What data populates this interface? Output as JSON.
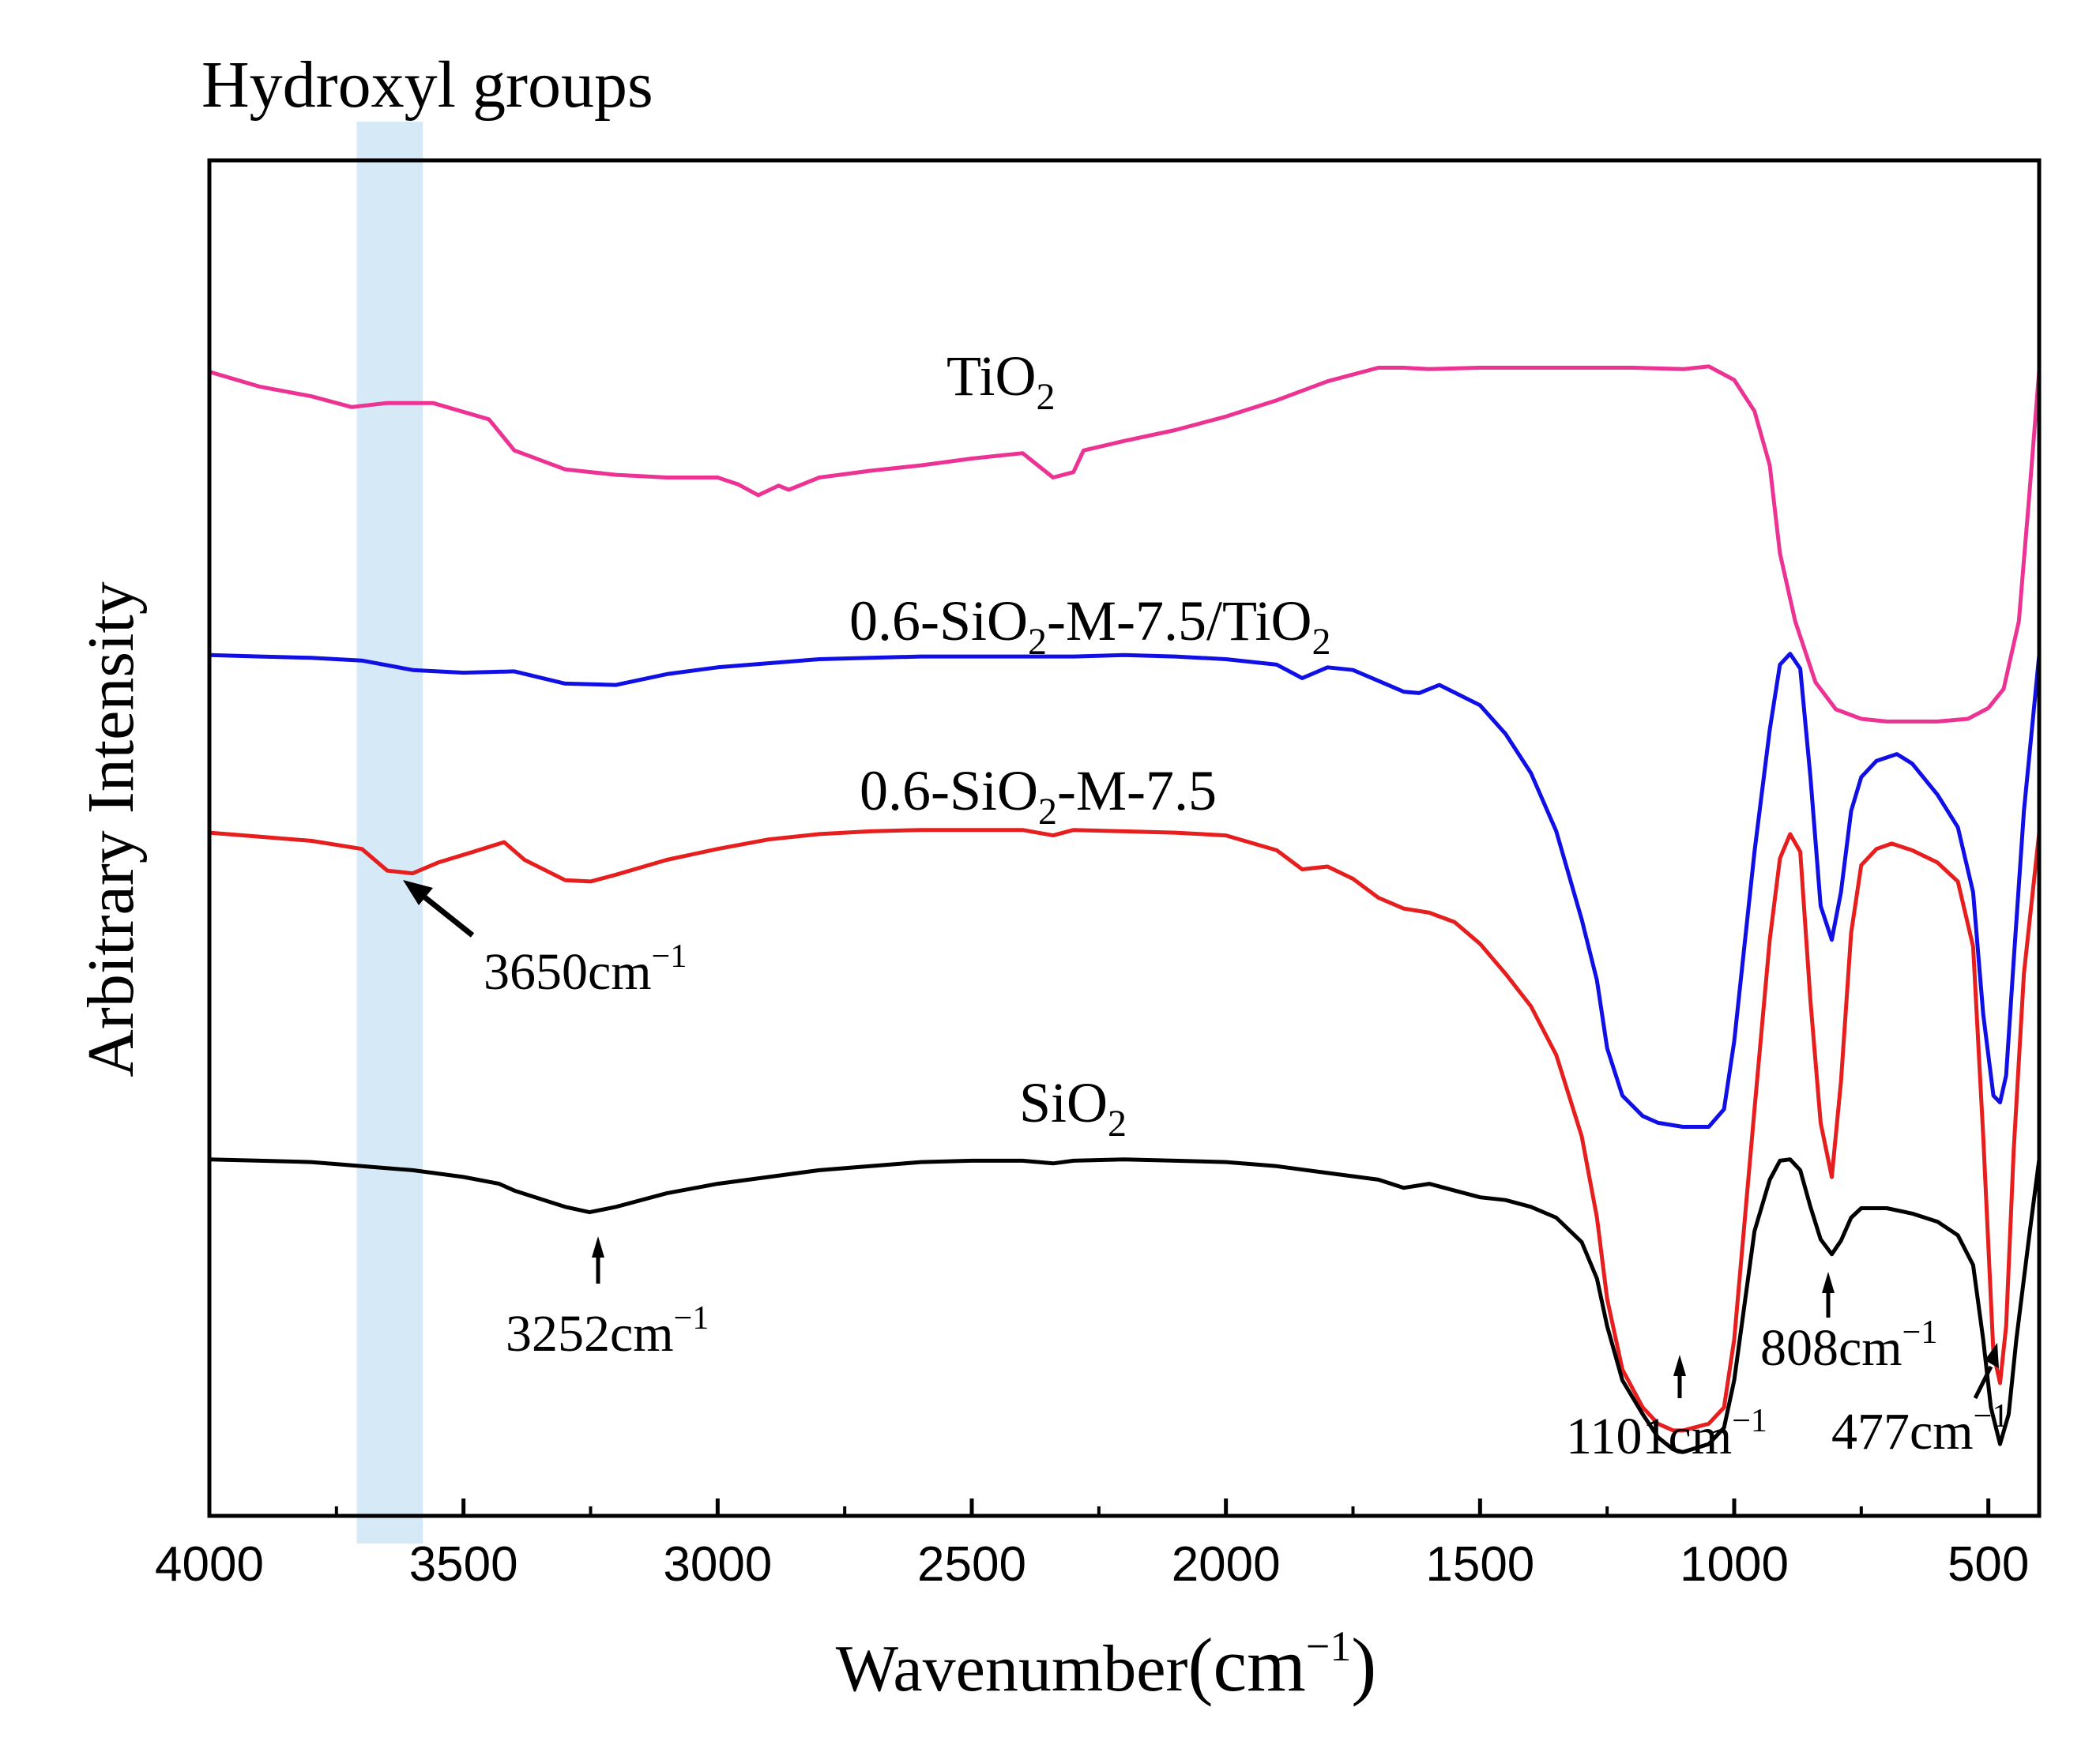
{
  "chart_data": {
    "type": "line",
    "title": "",
    "xlabel": "Wavenumber",
    "xlabel_unit": "(cm",
    "xlabel_unit_exp": "−1",
    "xlabel_unit_close": ")",
    "ylabel": "Arbitrary Intensity",
    "xlim": [
      4000,
      400
    ],
    "x_reversed": true,
    "x_ticks": [
      4000,
      3500,
      3000,
      2500,
      2000,
      1500,
      1000,
      500
    ],
    "x_tick_labels": [
      "4000",
      "3500",
      "3000",
      "2500",
      "2000",
      "1500",
      "1000",
      "500"
    ],
    "ylim": [
      0,
      100
    ],
    "y_ticks_shown": false,
    "grid": false,
    "highlight_band": {
      "label": "Hydroxyl groups",
      "x_from": 3710,
      "x_to": 3580,
      "color": "#d6e9f7"
    },
    "series": [
      {
        "name": "TiO2",
        "label_main": "TiO",
        "label_sub": "2",
        "label_tail": "",
        "color": "#ec3394",
        "points": [
          [
            4000,
            84.4
          ],
          [
            3900,
            83.3
          ],
          [
            3800,
            82.6
          ],
          [
            3720,
            81.8
          ],
          [
            3650,
            82.1
          ],
          [
            3560,
            82.1
          ],
          [
            3450,
            80.9
          ],
          [
            3400,
            78.6
          ],
          [
            3300,
            77.2
          ],
          [
            3200,
            76.8
          ],
          [
            3100,
            76.6
          ],
          [
            3000,
            76.6
          ],
          [
            2960,
            76.1
          ],
          [
            2920,
            75.3
          ],
          [
            2880,
            76.0
          ],
          [
            2860,
            75.7
          ],
          [
            2800,
            76.6
          ],
          [
            2700,
            77.1
          ],
          [
            2600,
            77.5
          ],
          [
            2500,
            78.0
          ],
          [
            2400,
            78.4
          ],
          [
            2380,
            77.8
          ],
          [
            2340,
            76.6
          ],
          [
            2300,
            77.0
          ],
          [
            2280,
            78.6
          ],
          [
            2200,
            79.3
          ],
          [
            2100,
            80.1
          ],
          [
            2000,
            81.1
          ],
          [
            1900,
            82.3
          ],
          [
            1800,
            83.7
          ],
          [
            1700,
            84.7
          ],
          [
            1650,
            84.7
          ],
          [
            1600,
            84.6
          ],
          [
            1500,
            84.7
          ],
          [
            1400,
            84.7
          ],
          [
            1200,
            84.7
          ],
          [
            1100,
            84.6
          ],
          [
            1050,
            84.8
          ],
          [
            1000,
            83.8
          ],
          [
            960,
            81.5
          ],
          [
            930,
            77.5
          ],
          [
            910,
            71.0
          ],
          [
            880,
            66.0
          ],
          [
            840,
            61.5
          ],
          [
            800,
            59.5
          ],
          [
            750,
            58.8
          ],
          [
            700,
            58.6
          ],
          [
            600,
            58.6
          ],
          [
            540,
            58.8
          ],
          [
            500,
            59.6
          ],
          [
            470,
            61.0
          ],
          [
            440,
            66.0
          ],
          [
            420,
            75.0
          ],
          [
            400,
            84.5
          ]
        ]
      },
      {
        "name": "0.6-SiO2-M-7.5/TiO2",
        "label_main": "0.6-SiO",
        "label_sub": "2",
        "label_tail": "-M-7.5/TiO",
        "label_sub2": "2",
        "color": "#0f0fe6",
        "points": [
          [
            4000,
            63.5
          ],
          [
            3900,
            63.4
          ],
          [
            3800,
            63.3
          ],
          [
            3700,
            63.1
          ],
          [
            3600,
            62.4
          ],
          [
            3500,
            62.2
          ],
          [
            3400,
            62.3
          ],
          [
            3300,
            61.4
          ],
          [
            3200,
            61.3
          ],
          [
            3100,
            62.1
          ],
          [
            3000,
            62.6
          ],
          [
            2900,
            62.9
          ],
          [
            2800,
            63.2
          ],
          [
            2700,
            63.3
          ],
          [
            2600,
            63.4
          ],
          [
            2500,
            63.4
          ],
          [
            2400,
            63.4
          ],
          [
            2300,
            63.4
          ],
          [
            2200,
            63.5
          ],
          [
            2100,
            63.4
          ],
          [
            2000,
            63.2
          ],
          [
            1900,
            62.8
          ],
          [
            1850,
            61.8
          ],
          [
            1800,
            62.6
          ],
          [
            1750,
            62.4
          ],
          [
            1700,
            61.6
          ],
          [
            1650,
            60.8
          ],
          [
            1620,
            60.7
          ],
          [
            1580,
            61.3
          ],
          [
            1500,
            59.8
          ],
          [
            1450,
            57.7
          ],
          [
            1400,
            54.8
          ],
          [
            1350,
            50.5
          ],
          [
            1300,
            44.0
          ],
          [
            1270,
            39.5
          ],
          [
            1250,
            34.5
          ],
          [
            1220,
            31.0
          ],
          [
            1180,
            29.5
          ],
          [
            1150,
            29.0
          ],
          [
            1101,
            28.7
          ],
          [
            1050,
            28.7
          ],
          [
            1020,
            30.0
          ],
          [
            1000,
            35.0
          ],
          [
            960,
            49.0
          ],
          [
            930,
            58.0
          ],
          [
            910,
            62.8
          ],
          [
            890,
            63.6
          ],
          [
            870,
            62.5
          ],
          [
            850,
            54.5
          ],
          [
            830,
            45.0
          ],
          [
            808,
            42.5
          ],
          [
            790,
            46.0
          ],
          [
            770,
            52.0
          ],
          [
            750,
            54.5
          ],
          [
            720,
            55.7
          ],
          [
            680,
            56.2
          ],
          [
            650,
            55.5
          ],
          [
            600,
            53.2
          ],
          [
            560,
            50.8
          ],
          [
            530,
            46.0
          ],
          [
            510,
            37.0
          ],
          [
            490,
            31.0
          ],
          [
            477,
            30.5
          ],
          [
            465,
            32.5
          ],
          [
            450,
            41.0
          ],
          [
            430,
            52.0
          ],
          [
            400,
            63.5
          ]
        ]
      },
      {
        "name": "0.6-SiO2-M-7.5",
        "label_main": "0.6-SiO",
        "label_sub": "2",
        "label_tail": "-M-7.5",
        "color": "#e61e1e",
        "points": [
          [
            4000,
            50.4
          ],
          [
            3900,
            50.1
          ],
          [
            3800,
            49.8
          ],
          [
            3700,
            49.2
          ],
          [
            3650,
            47.6
          ],
          [
            3600,
            47.4
          ],
          [
            3550,
            48.2
          ],
          [
            3480,
            49.0
          ],
          [
            3420,
            49.7
          ],
          [
            3380,
            48.4
          ],
          [
            3300,
            46.9
          ],
          [
            3250,
            46.8
          ],
          [
            3200,
            47.3
          ],
          [
            3100,
            48.4
          ],
          [
            3000,
            49.2
          ],
          [
            2900,
            49.9
          ],
          [
            2800,
            50.3
          ],
          [
            2700,
            50.5
          ],
          [
            2600,
            50.6
          ],
          [
            2500,
            50.6
          ],
          [
            2400,
            50.6
          ],
          [
            2340,
            50.2
          ],
          [
            2300,
            50.6
          ],
          [
            2200,
            50.5
          ],
          [
            2100,
            50.4
          ],
          [
            2000,
            50.2
          ],
          [
            1900,
            49.1
          ],
          [
            1850,
            47.7
          ],
          [
            1800,
            47.9
          ],
          [
            1750,
            47.0
          ],
          [
            1700,
            45.6
          ],
          [
            1650,
            44.8
          ],
          [
            1600,
            44.5
          ],
          [
            1550,
            43.8
          ],
          [
            1500,
            42.2
          ],
          [
            1450,
            40.0
          ],
          [
            1400,
            37.6
          ],
          [
            1350,
            34.0
          ],
          [
            1300,
            28.0
          ],
          [
            1270,
            22.0
          ],
          [
            1250,
            16.0
          ],
          [
            1220,
            10.8
          ],
          [
            1180,
            8.0
          ],
          [
            1150,
            6.8
          ],
          [
            1120,
            6.3
          ],
          [
            1101,
            6.3
          ],
          [
            1050,
            6.8
          ],
          [
            1020,
            8.0
          ],
          [
            1000,
            13.0
          ],
          [
            960,
            30.0
          ],
          [
            930,
            42.5
          ],
          [
            910,
            48.5
          ],
          [
            890,
            50.3
          ],
          [
            870,
            49.0
          ],
          [
            850,
            38.0
          ],
          [
            830,
            29.0
          ],
          [
            808,
            25.0
          ],
          [
            790,
            32.0
          ],
          [
            770,
            43.0
          ],
          [
            750,
            48.0
          ],
          [
            720,
            49.2
          ],
          [
            690,
            49.6
          ],
          [
            650,
            49.1
          ],
          [
            600,
            48.2
          ],
          [
            560,
            46.8
          ],
          [
            530,
            42.0
          ],
          [
            510,
            28.0
          ],
          [
            490,
            12.0
          ],
          [
            477,
            9.8
          ],
          [
            465,
            14.0
          ],
          [
            450,
            27.0
          ],
          [
            430,
            40.0
          ],
          [
            400,
            50.4
          ]
        ]
      },
      {
        "name": "SiO2",
        "label_main": "SiO",
        "label_sub": "2",
        "label_tail": "",
        "color": "#000000",
        "points": [
          [
            4000,
            26.3
          ],
          [
            3900,
            26.2
          ],
          [
            3800,
            26.1
          ],
          [
            3700,
            25.8
          ],
          [
            3600,
            25.5
          ],
          [
            3500,
            25.0
          ],
          [
            3430,
            24.5
          ],
          [
            3400,
            24.0
          ],
          [
            3300,
            22.8
          ],
          [
            3252,
            22.4
          ],
          [
            3200,
            22.8
          ],
          [
            3100,
            23.8
          ],
          [
            3000,
            24.5
          ],
          [
            2900,
            25.0
          ],
          [
            2800,
            25.5
          ],
          [
            2700,
            25.8
          ],
          [
            2600,
            26.1
          ],
          [
            2500,
            26.2
          ],
          [
            2400,
            26.2
          ],
          [
            2340,
            26.0
          ],
          [
            2300,
            26.2
          ],
          [
            2200,
            26.3
          ],
          [
            2100,
            26.2
          ],
          [
            2000,
            26.1
          ],
          [
            1900,
            25.8
          ],
          [
            1800,
            25.3
          ],
          [
            1700,
            24.8
          ],
          [
            1650,
            24.2
          ],
          [
            1600,
            24.5
          ],
          [
            1550,
            24.0
          ],
          [
            1500,
            23.5
          ],
          [
            1450,
            23.3
          ],
          [
            1400,
            22.8
          ],
          [
            1350,
            22.0
          ],
          [
            1300,
            20.2
          ],
          [
            1270,
            17.5
          ],
          [
            1250,
            14.0
          ],
          [
            1220,
            10.0
          ],
          [
            1180,
            7.5
          ],
          [
            1150,
            5.8
          ],
          [
            1120,
            4.9
          ],
          [
            1101,
            4.7
          ],
          [
            1050,
            5.3
          ],
          [
            1020,
            6.5
          ],
          [
            1000,
            10.0
          ],
          [
            960,
            21.0
          ],
          [
            930,
            24.8
          ],
          [
            910,
            26.2
          ],
          [
            890,
            26.3
          ],
          [
            870,
            25.5
          ],
          [
            850,
            22.8
          ],
          [
            830,
            20.4
          ],
          [
            808,
            19.3
          ],
          [
            790,
            20.3
          ],
          [
            770,
            22.0
          ],
          [
            750,
            22.7
          ],
          [
            700,
            22.7
          ],
          [
            650,
            22.3
          ],
          [
            600,
            21.7
          ],
          [
            560,
            20.7
          ],
          [
            530,
            18.5
          ],
          [
            510,
            13.0
          ],
          [
            495,
            8.0
          ],
          [
            477,
            5.3
          ],
          [
            460,
            7.5
          ],
          [
            445,
            13.0
          ],
          [
            420,
            20.5
          ],
          [
            400,
            26.3
          ]
        ]
      }
    ],
    "annotations": [
      {
        "id": "ann-3650",
        "text": "3650cm",
        "sup": "−1",
        "target_x": 3650,
        "target_y": 47.6
      },
      {
        "id": "ann-3252",
        "text": "3252cm",
        "sup": "−1",
        "target_x": 3252,
        "target_y": 22.4
      },
      {
        "id": "ann-1101",
        "text": "1101cm",
        "sup": "−1",
        "target_x": 1101,
        "target_y": 4.7
      },
      {
        "id": "ann-808",
        "text": "808cm",
        "sup": "−1",
        "target_x": 808,
        "target_y": 19.3
      },
      {
        "id": "ann-477",
        "text": "477cm",
        "sup": "−1",
        "target_x": 477,
        "target_y": 5.3
      }
    ]
  }
}
